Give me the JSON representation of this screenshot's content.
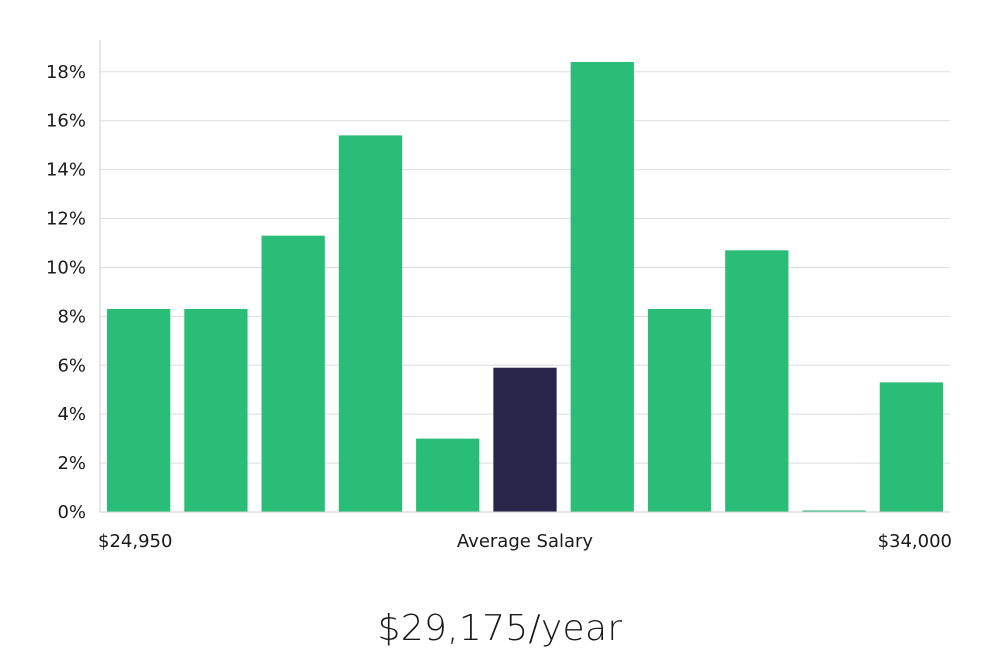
{
  "chart_data": {
    "type": "bar",
    "values": [
      8.3,
      8.3,
      11.3,
      15.4,
      3.0,
      5.9,
      18.4,
      8.3,
      10.7,
      0.0,
      5.3
    ],
    "highlight_index": 5,
    "ylim": [
      0,
      19.3
    ],
    "yticks": [
      0,
      2,
      4,
      6,
      8,
      10,
      12,
      14,
      16,
      18
    ],
    "ytick_format": "{v}%",
    "grid": true,
    "x_labels": {
      "left": "$24,950",
      "center": "Average Salary",
      "right": "$34,000"
    },
    "colors": {
      "bar": "#2abd77",
      "highlight": "#28244a",
      "grid": "#dedede"
    }
  },
  "salary_label": "$29,175/year"
}
